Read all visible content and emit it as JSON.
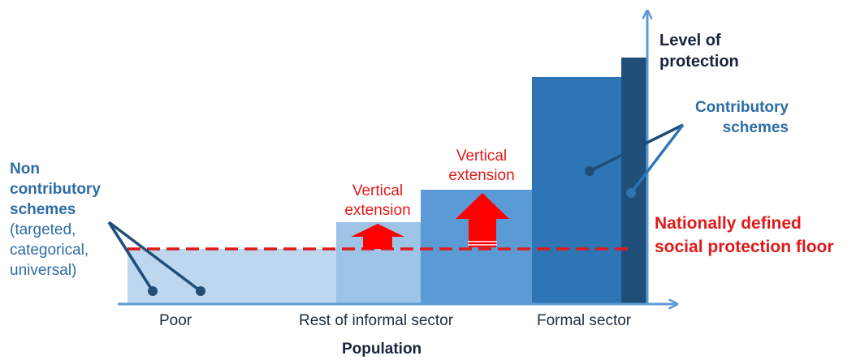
{
  "axis": {
    "x_label": "Population",
    "y_label_line1": "Level of",
    "y_label_line2": "protection"
  },
  "categories": {
    "poor": "Poor",
    "informal": "Rest of informal sector",
    "formal": "Formal sector"
  },
  "annotations": {
    "non_contributory_title": [
      "Non",
      "contributory",
      "schemes"
    ],
    "non_contributory_detail": [
      "(targeted,",
      "categorical,",
      "universal)"
    ],
    "contributory": [
      "Contributory",
      "schemes"
    ],
    "vertical_extension_1": [
      "Vertical",
      "extension"
    ],
    "vertical_extension_2": [
      "Vertical",
      "extension"
    ],
    "floor": [
      "Nationally defined",
      "social protection floor"
    ]
  },
  "colors": {
    "axis": "#5b9bd5",
    "bar_poor": "#bdd7ee",
    "bar_informal_1": "#9dc3e6",
    "bar_informal_2": "#5b9bd5",
    "bar_formal": "#2e75b6",
    "bar_formal_top": "#1f4e79",
    "floor_line": "#e01a1a",
    "arrow": "#ff0000",
    "pointer": "#1f4e79"
  }
}
